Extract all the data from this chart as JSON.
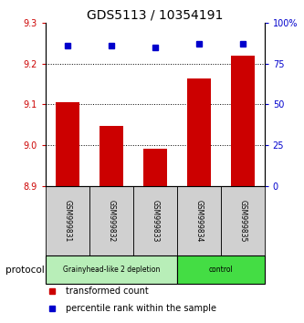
{
  "title": "GDS5113 / 10354191",
  "samples": [
    "GSM999831",
    "GSM999832",
    "GSM999833",
    "GSM999834",
    "GSM999835"
  ],
  "bar_values": [
    9.105,
    9.047,
    8.992,
    9.163,
    9.218
  ],
  "percentile_values": [
    86,
    86,
    85,
    87,
    87
  ],
  "bar_color": "#cc0000",
  "dot_color": "#0000cc",
  "ylim_left": [
    8.9,
    9.3
  ],
  "ylim_right": [
    0,
    100
  ],
  "yticks_left": [
    8.9,
    9.0,
    9.1,
    9.2,
    9.3
  ],
  "yticks_right": [
    0,
    25,
    50,
    75,
    100
  ],
  "ytick_labels_right": [
    "0",
    "25",
    "50",
    "75",
    "100%"
  ],
  "grid_values": [
    9.0,
    9.1,
    9.2
  ],
  "groups": [
    {
      "label": "Grainyhead-like 2 depletion",
      "indices": [
        0,
        1,
        2
      ],
      "color": "#b8eeb8"
    },
    {
      "label": "control",
      "indices": [
        3,
        4
      ],
      "color": "#44dd44"
    }
  ],
  "protocol_label": "protocol",
  "legend_items": [
    {
      "color": "#cc0000",
      "marker": "s",
      "label": "transformed count"
    },
    {
      "color": "#0000cc",
      "marker": "s",
      "label": "percentile rank within the sample"
    }
  ],
  "bar_width": 0.55,
  "sample_box_color": "#d0d0d0",
  "background_color": "#ffffff",
  "tick_label_color_left": "#cc0000",
  "tick_label_color_right": "#0000cc",
  "title_fontsize": 10,
  "tick_fontsize": 7,
  "legend_fontsize": 7
}
